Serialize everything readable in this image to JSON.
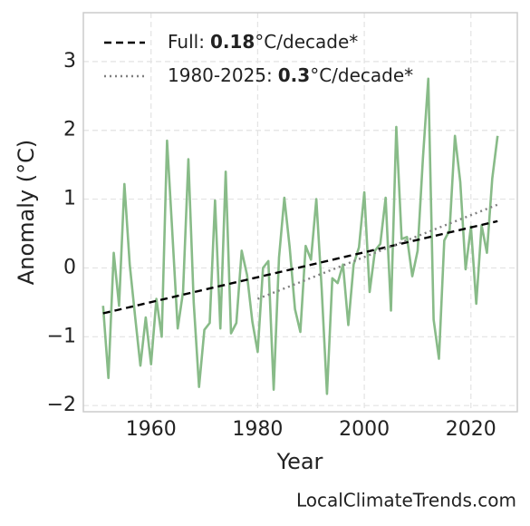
{
  "chart_data": {
    "type": "line",
    "xlabel": "Year",
    "ylabel": "Anomaly (°C)",
    "watermark": "LocalClimateTrends.com",
    "xlim": [
      1947.3,
      2028.7
    ],
    "ylim": [
      -2.09,
      3.71
    ],
    "xticks": [
      1960,
      1980,
      2000,
      2020
    ],
    "yticks": [
      {
        "value": -2,
        "label": "−2"
      },
      {
        "value": -1,
        "label": "−1"
      },
      0,
      1,
      2,
      3
    ],
    "grid": true,
    "legend": "upper left",
    "series": [
      {
        "name": "Anomaly",
        "color": "#88bb88",
        "style": "solid",
        "x": [
          1951,
          1952,
          1953,
          1954,
          1955,
          1956,
          1957,
          1958,
          1959,
          1960,
          1961,
          1962,
          1963,
          1964,
          1965,
          1966,
          1967,
          1968,
          1969,
          1970,
          1971,
          1972,
          1973,
          1974,
          1975,
          1976,
          1977,
          1978,
          1979,
          1980,
          1981,
          1982,
          1983,
          1984,
          1985,
          1986,
          1987,
          1988,
          1989,
          1990,
          1991,
          1992,
          1993,
          1994,
          1995,
          1996,
          1997,
          1998,
          1999,
          2000,
          2001,
          2002,
          2003,
          2004,
          2005,
          2006,
          2007,
          2008,
          2009,
          2010,
          2011,
          2012,
          2013,
          2014,
          2015,
          2016,
          2017,
          2018,
          2019,
          2020,
          2021,
          2022,
          2023,
          2024,
          2025
        ],
        "values": [
          -0.55,
          -1.6,
          0.22,
          -0.55,
          1.22,
          0.05,
          -0.7,
          -1.42,
          -0.72,
          -1.4,
          -0.45,
          -1.0,
          1.85,
          0.5,
          -0.88,
          -0.35,
          1.58,
          -0.5,
          -1.73,
          -0.9,
          -0.8,
          0.98,
          -0.88,
          1.4,
          -0.95,
          -0.8,
          0.25,
          -0.1,
          -0.78,
          -1.22,
          0.0,
          0.1,
          -1.77,
          0.15,
          1.02,
          0.3,
          -0.6,
          -0.93,
          0.32,
          0.12,
          1.0,
          -0.3,
          -1.83,
          -0.15,
          -0.22,
          0.05,
          -0.83,
          0.05,
          0.3,
          1.1,
          -0.35,
          0.25,
          0.35,
          1.02,
          -0.62,
          2.05,
          0.42,
          0.45,
          -0.12,
          0.25,
          1.6,
          2.75,
          -0.75,
          -1.32,
          0.4,
          0.55,
          1.92,
          1.25,
          -0.02,
          0.6,
          -0.52,
          0.62,
          0.22,
          1.3,
          1.92
        ]
      },
      {
        "name": "Full:",
        "rate": 0.18,
        "rate_unit": "°C/decade*",
        "color": "#000000",
        "style": "dashed",
        "x": [
          1951,
          2025
        ],
        "values": [
          -0.66,
          0.68
        ]
      },
      {
        "name": "1980-2025:",
        "rate": 0.3,
        "rate_unit": "°C/decade*",
        "color": "#808080",
        "style": "dotted",
        "x": [
          1980,
          2025
        ],
        "values": [
          -0.45,
          0.92
        ]
      }
    ]
  }
}
